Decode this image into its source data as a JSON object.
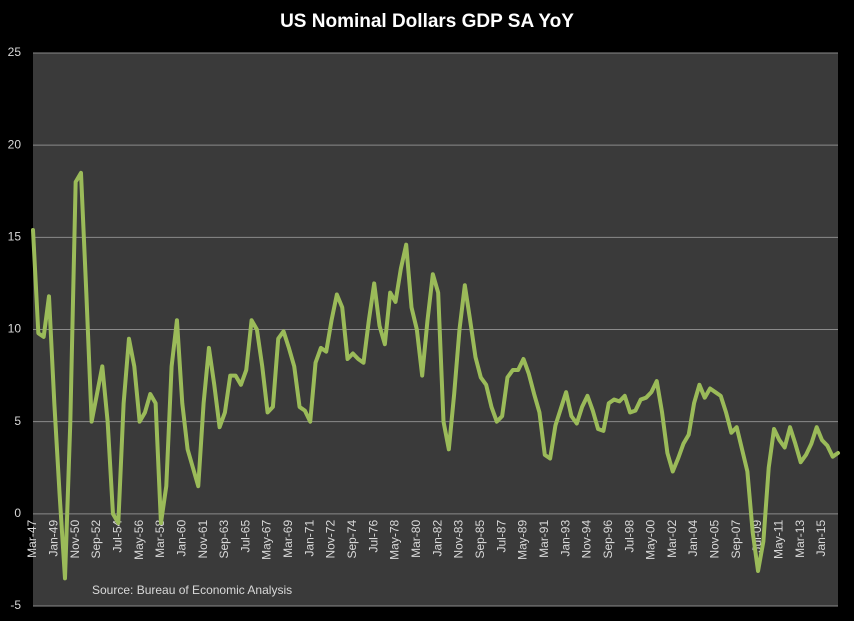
{
  "chart_data": {
    "type": "line",
    "title": "US Nominal Dollars GDP SA YoY",
    "annotation": "Source: Bureau of Economic Analysis",
    "categories": [
      "Mar-47",
      null,
      null,
      null,
      "Jan-49",
      null,
      null,
      null,
      "Nov-50",
      null,
      null,
      null,
      "Sep-52",
      null,
      null,
      null,
      "Jul-54",
      null,
      null,
      null,
      "May-56",
      null,
      null,
      null,
      "Mar-58",
      null,
      null,
      null,
      "Jan-60",
      null,
      null,
      null,
      "Nov-61",
      null,
      null,
      null,
      "Sep-63",
      null,
      null,
      null,
      "Jul-65",
      null,
      null,
      null,
      "May-67",
      null,
      null,
      null,
      "Mar-69",
      null,
      null,
      null,
      "Jan-71",
      null,
      null,
      null,
      "Nov-72",
      null,
      null,
      null,
      "Sep-74",
      null,
      null,
      null,
      "Jul-76",
      null,
      null,
      null,
      "May-78",
      null,
      null,
      null,
      "Mar-80",
      null,
      null,
      null,
      "Jan-82",
      null,
      null,
      null,
      "Nov-83",
      null,
      null,
      null,
      "Sep-85",
      null,
      null,
      null,
      "Jul-87",
      null,
      null,
      null,
      "May-89",
      null,
      null,
      null,
      "Mar-91",
      null,
      null,
      null,
      "Jan-93",
      null,
      null,
      null,
      "Nov-94",
      null,
      null,
      null,
      "Sep-96",
      null,
      null,
      null,
      "Jul-98",
      null,
      null,
      null,
      "May-00",
      null,
      null,
      null,
      "Mar-02",
      null,
      null,
      null,
      "Jan-04",
      null,
      null,
      null,
      "Nov-05",
      null,
      null,
      null,
      "Sep-07",
      null,
      null,
      null,
      "Jul-09",
      null,
      null,
      null,
      "May-11",
      null,
      null,
      null,
      "Mar-13",
      null,
      null,
      null,
      "Jan-15",
      null,
      null,
      null
    ],
    "series": [
      {
        "name": "US Nominal Dollars GDP SA YoY",
        "color": "#9bbb59",
        "values": [
          15.4,
          9.8,
          9.6,
          11.8,
          6,
          1,
          -3.5,
          5,
          18,
          18.5,
          12,
          5,
          6.5,
          8,
          5,
          0,
          -0.5,
          6,
          9.5,
          8,
          5,
          5.5,
          6.5,
          6,
          -0.5,
          1.5,
          8,
          10.5,
          6,
          3.5,
          2.5,
          1.5,
          6,
          9,
          7,
          4.7,
          5.5,
          7.5,
          7.5,
          7,
          7.8,
          10.5,
          10,
          8,
          5.5,
          5.8,
          9.5,
          9.9,
          9,
          8,
          5.8,
          5.6,
          5,
          8.2,
          9,
          8.8,
          10.5,
          11.9,
          11.2,
          8.4,
          8.7,
          8.4,
          8.2,
          10.5,
          12.5,
          10.2,
          9.2,
          12,
          11.5,
          13.3,
          14.6,
          11.2,
          10,
          7.5,
          10.5,
          13,
          12,
          5,
          3.5,
          6.5,
          10,
          12.4,
          10.5,
          8.5,
          7.4,
          7,
          5.8,
          5,
          5.3,
          7.4,
          7.8,
          7.8,
          8.4,
          7.6,
          6.5,
          5.5,
          3.2,
          3,
          4.8,
          5.7,
          6.6,
          5.3,
          4.9,
          5.8,
          6.4,
          5.6,
          4.6,
          4.5,
          6,
          6.2,
          6.1,
          6.4,
          5.5,
          5.6,
          6.2,
          6.3,
          6.6,
          7.2,
          5.5,
          3.3,
          2.3,
          3,
          3.8,
          4.3,
          6,
          7,
          6.3,
          6.8,
          6.6,
          6.4,
          5.5,
          4.4,
          4.7,
          3.5,
          2.3,
          -1,
          -3.1,
          -1.5,
          2.5,
          4.6,
          4,
          3.6,
          4.7,
          3.8,
          2.8,
          3.2,
          3.8,
          4.7,
          4,
          3.7,
          3.1,
          3.3
        ]
      }
    ],
    "ylim": [
      -5,
      25
    ],
    "yticks": [
      -5,
      0,
      5,
      10,
      15,
      20,
      25
    ],
    "grid": true
  }
}
